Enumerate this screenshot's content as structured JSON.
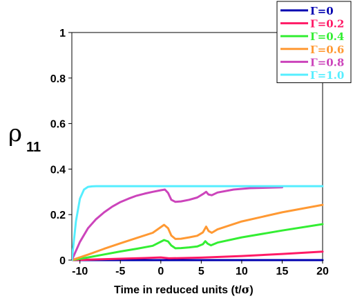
{
  "chart_data": {
    "type": "line",
    "title": "",
    "xlabel_main": "Time in reduced units (t/",
    "xlabel_sigma": "σ",
    "xlabel_close": ")",
    "ylabel_symbol": "ρ",
    "ylabel_subscript": "11",
    "xlim": [
      -11,
      20
    ],
    "ylim": [
      0,
      1
    ],
    "xticks": [
      -10,
      -5,
      0,
      5,
      10,
      15,
      20
    ],
    "yticks": [
      0,
      0.2,
      0.4,
      0.6,
      0.8,
      1
    ],
    "ytick_labels": [
      "0",
      "0.2",
      "0.4",
      "0.6",
      "0.8",
      "1"
    ],
    "legend_position": "top-right",
    "series": [
      {
        "name": "Γ=0",
        "color": "#0000b0",
        "x": [
          -11,
          -5,
          0,
          5,
          10,
          15,
          20
        ],
        "y": [
          0,
          0,
          0,
          0,
          0,
          0,
          0
        ]
      },
      {
        "name": "Γ=0.2",
        "color": "#ff1a66",
        "x": [
          -11,
          -8,
          -5,
          -2,
          0,
          1,
          5,
          10,
          15,
          20
        ],
        "y": [
          0,
          0.003,
          0.006,
          0.009,
          0.012,
          0.008,
          0.011,
          0.018,
          0.027,
          0.037
        ]
      },
      {
        "name": "Γ=0.4",
        "color": "#33ee33",
        "x": [
          -11,
          -9,
          -7,
          -5,
          -3,
          -1,
          0.4,
          0.9,
          1.3,
          1.8,
          2.5,
          3.5,
          4.5,
          5.2,
          5.5,
          5.8,
          6.2,
          7,
          10,
          15,
          20
        ],
        "y": [
          0,
          0.012,
          0.025,
          0.038,
          0.05,
          0.063,
          0.088,
          0.082,
          0.064,
          0.052,
          0.053,
          0.056,
          0.06,
          0.07,
          0.083,
          0.072,
          0.065,
          0.077,
          0.1,
          0.13,
          0.158
        ]
      },
      {
        "name": "Γ=0.6",
        "color": "#ff9933",
        "x": [
          -11,
          -9,
          -7,
          -5,
          -3,
          -1,
          0.4,
          0.9,
          1.3,
          1.8,
          2.5,
          3.5,
          4.5,
          5.2,
          5.6,
          5.9,
          6.3,
          7,
          10,
          15,
          20
        ],
        "y": [
          0,
          0.024,
          0.05,
          0.074,
          0.097,
          0.12,
          0.155,
          0.14,
          0.108,
          0.093,
          0.094,
          0.1,
          0.107,
          0.122,
          0.147,
          0.128,
          0.12,
          0.135,
          0.17,
          0.21,
          0.243
        ]
      },
      {
        "name": "Γ=0.8",
        "color": "#cc44bb",
        "x": [
          -11,
          -10,
          -9,
          -8,
          -7,
          -6,
          -5,
          -4,
          -3,
          -2,
          -1,
          0,
          0.5,
          0.9,
          1.3,
          1.8,
          2.5,
          3.5,
          4.5,
          5.2,
          5.6,
          5.9,
          6.3,
          7,
          9,
          11,
          13,
          15
        ],
        "y": [
          0,
          0.08,
          0.14,
          0.18,
          0.21,
          0.235,
          0.255,
          0.27,
          0.283,
          0.292,
          0.3,
          0.307,
          0.31,
          0.295,
          0.265,
          0.256,
          0.258,
          0.265,
          0.275,
          0.29,
          0.3,
          0.288,
          0.285,
          0.297,
          0.31,
          0.316,
          0.318,
          0.32
        ]
      },
      {
        "name": "Γ=1.0",
        "color": "#55eeff",
        "x": [
          -11,
          -10.5,
          -10,
          -9.5,
          -9,
          -8.5,
          -8,
          -5,
          0,
          5,
          10,
          15,
          20
        ],
        "y": [
          0,
          0.17,
          0.27,
          0.31,
          0.322,
          0.324,
          0.325,
          0.325,
          0.325,
          0.325,
          0.325,
          0.325,
          0.325
        ]
      }
    ]
  }
}
